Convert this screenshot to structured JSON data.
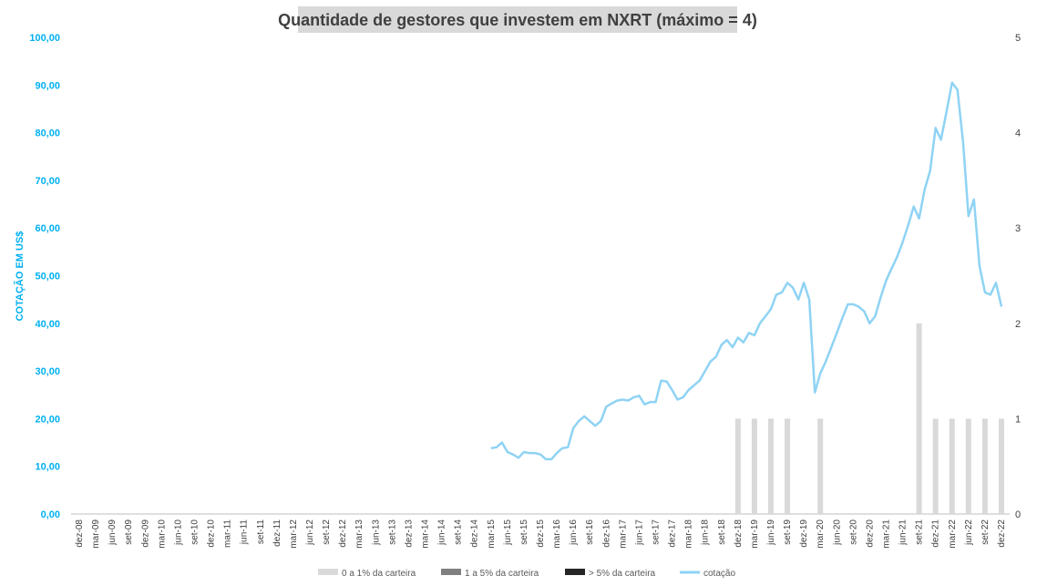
{
  "chart_data": {
    "type": "bar+line",
    "title": "Quantidade de gestores que investem em NXRT (máximo = 4)",
    "ylabel_left": "COTAÇÃO EM US$",
    "ylim_left": [
      0,
      100
    ],
    "yticks_left": [
      "0,00",
      "10,00",
      "20,00",
      "30,00",
      "40,00",
      "50,00",
      "60,00",
      "70,00",
      "80,00",
      "90,00",
      "100,00"
    ],
    "ylim_right": [
      0,
      5
    ],
    "yticks_right": [
      "0",
      "1",
      "2",
      "3",
      "4",
      "5"
    ],
    "grid": false,
    "legend_position": "bottom",
    "x_labels": [
      "dez-08",
      "mar-09",
      "jun-09",
      "set-09",
      "dez-09",
      "mar-10",
      "jun-10",
      "set-10",
      "dez-10",
      "mar-11",
      "jun-11",
      "set-11",
      "dez-11",
      "mar-12",
      "jun-12",
      "set-12",
      "dez-12",
      "mar-13",
      "jun-13",
      "set-13",
      "dez-13",
      "mar-14",
      "jun-14",
      "set-14",
      "dez-14",
      "mar-15",
      "jun-15",
      "set-15",
      "dez-15",
      "mar-16",
      "jun-16",
      "set-16",
      "dez-16",
      "mar-17",
      "jun-17",
      "set-17",
      "dez-17",
      "mar-18",
      "jun-18",
      "set-18",
      "dez-18",
      "mar-19",
      "jun-19",
      "set-19",
      "dez-19",
      "mar-20",
      "jun-20",
      "set-20",
      "dez-20",
      "mar-21",
      "jun-21",
      "set-21",
      "dez-21",
      "mar-22",
      "jun-22",
      "set-22",
      "dez-22"
    ],
    "series": [
      {
        "name": "0 a 1% da carteira",
        "type": "bar",
        "color": "#d9d9d9",
        "axis": "right",
        "values": [
          0,
          0,
          0,
          0,
          0,
          0,
          0,
          0,
          0,
          0,
          0,
          0,
          0,
          0,
          0,
          0,
          0,
          0,
          0,
          0,
          0,
          0,
          0,
          0,
          0,
          0,
          0,
          0,
          0,
          0,
          0,
          0,
          0,
          0,
          0,
          0,
          0,
          0,
          0,
          0,
          1,
          1,
          1,
          1,
          0,
          1,
          0,
          0,
          0,
          0,
          0,
          2,
          1,
          1,
          1,
          1,
          1
        ]
      },
      {
        "name": "1 a 5% da carteira",
        "type": "bar",
        "color": "#808080",
        "axis": "right",
        "values": [
          0,
          0,
          0,
          0,
          0,
          0,
          0,
          0,
          0,
          0,
          0,
          0,
          0,
          0,
          0,
          0,
          0,
          0,
          0,
          0,
          0,
          0,
          0,
          0,
          0,
          0,
          0,
          0,
          0,
          0,
          0,
          0,
          0,
          0,
          0,
          0,
          0,
          0,
          0,
          0,
          0,
          0,
          0,
          0,
          0,
          0,
          0,
          0,
          0,
          0,
          0,
          0,
          0,
          0,
          0,
          0,
          0
        ]
      },
      {
        "name": "> 5% da carteira",
        "type": "bar",
        "color": "#262626",
        "axis": "right",
        "values": [
          0,
          0,
          0,
          0,
          0,
          0,
          0,
          0,
          0,
          0,
          0,
          0,
          0,
          0,
          0,
          0,
          0,
          0,
          0,
          0,
          0,
          0,
          0,
          0,
          0,
          0,
          0,
          0,
          0,
          0,
          0,
          0,
          0,
          0,
          0,
          0,
          0,
          0,
          0,
          0,
          0,
          0,
          0,
          0,
          0,
          0,
          0,
          0,
          0,
          0,
          0,
          0,
          0,
          0,
          0,
          0,
          0
        ]
      },
      {
        "name": "cotação",
        "type": "line",
        "color": "#8fd3f4",
        "axis": "left",
        "points": [
          [
            25.0,
            13.8
          ],
          [
            25.33,
            14.0
          ],
          [
            25.67,
            15.0
          ],
          [
            26.0,
            13.0
          ],
          [
            26.33,
            12.5
          ],
          [
            26.67,
            11.8
          ],
          [
            27.0,
            13.0
          ],
          [
            27.33,
            12.8
          ],
          [
            27.67,
            12.8
          ],
          [
            28.0,
            12.5
          ],
          [
            28.33,
            11.5
          ],
          [
            28.67,
            11.5
          ],
          [
            29.0,
            12.8
          ],
          [
            29.33,
            13.8
          ],
          [
            29.67,
            14.0
          ],
          [
            30.0,
            18.0
          ],
          [
            30.33,
            19.5
          ],
          [
            30.67,
            20.5
          ],
          [
            31.0,
            19.5
          ],
          [
            31.33,
            18.5
          ],
          [
            31.67,
            19.5
          ],
          [
            32.0,
            22.5
          ],
          [
            32.33,
            23.2
          ],
          [
            32.67,
            23.8
          ],
          [
            33.0,
            24.0
          ],
          [
            33.33,
            23.8
          ],
          [
            33.67,
            24.5
          ],
          [
            34.0,
            24.8
          ],
          [
            34.33,
            23.0
          ],
          [
            34.67,
            23.5
          ],
          [
            35.0,
            23.5
          ],
          [
            35.33,
            28.0
          ],
          [
            35.67,
            27.8
          ],
          [
            36.0,
            26.0
          ],
          [
            36.33,
            24.0
          ],
          [
            36.67,
            24.5
          ],
          [
            37.0,
            26.0
          ],
          [
            37.33,
            27.0
          ],
          [
            37.67,
            28.0
          ],
          [
            38.0,
            30.0
          ],
          [
            38.33,
            32.0
          ],
          [
            38.67,
            33.0
          ],
          [
            39.0,
            35.5
          ],
          [
            39.33,
            36.5
          ],
          [
            39.67,
            35.0
          ],
          [
            40.0,
            37.0
          ],
          [
            40.33,
            36.0
          ],
          [
            40.67,
            38.0
          ],
          [
            41.0,
            37.5
          ],
          [
            41.33,
            40.0
          ],
          [
            41.67,
            41.5
          ],
          [
            42.0,
            43.0
          ],
          [
            42.33,
            46.0
          ],
          [
            42.67,
            46.5
          ],
          [
            43.0,
            48.5
          ],
          [
            43.33,
            47.5
          ],
          [
            43.67,
            45.0
          ],
          [
            44.0,
            48.5
          ],
          [
            44.33,
            45.0
          ],
          [
            44.67,
            25.5
          ],
          [
            45.0,
            29.5
          ],
          [
            45.33,
            32.0
          ],
          [
            45.67,
            35.0
          ],
          [
            46.0,
            38.0
          ],
          [
            46.33,
            41.0
          ],
          [
            46.67,
            44.0
          ],
          [
            47.0,
            44.0
          ],
          [
            47.33,
            43.5
          ],
          [
            47.67,
            42.5
          ],
          [
            48.0,
            40.0
          ],
          [
            48.33,
            41.5
          ],
          [
            48.67,
            45.5
          ],
          [
            49.0,
            49.0
          ],
          [
            49.33,
            51.5
          ],
          [
            49.67,
            54.0
          ],
          [
            50.0,
            57.0
          ],
          [
            50.33,
            60.5
          ],
          [
            50.67,
            64.5
          ],
          [
            51.0,
            62.0
          ],
          [
            51.33,
            68.0
          ],
          [
            51.67,
            72.0
          ],
          [
            52.0,
            81.0
          ],
          [
            52.33,
            78.5
          ],
          [
            52.67,
            84.5
          ],
          [
            53.0,
            90.5
          ],
          [
            53.33,
            89.0
          ],
          [
            53.67,
            78.0
          ],
          [
            54.0,
            62.5
          ],
          [
            54.33,
            66.0
          ],
          [
            54.67,
            52.0
          ],
          [
            55.0,
            46.5
          ],
          [
            55.33,
            46.0
          ],
          [
            55.67,
            48.5
          ],
          [
            56.0,
            43.5
          ]
        ]
      }
    ]
  },
  "legend": [
    {
      "label": "0 a 1% da carteira",
      "color": "#d9d9d9",
      "shape": "rect"
    },
    {
      "label": "1 a 5% da carteira",
      "color": "#808080",
      "shape": "rect"
    },
    {
      "label": "> 5% da carteira",
      "color": "#262626",
      "shape": "rect"
    },
    {
      "label": "cotação",
      "color": "#8fd3f4",
      "shape": "line"
    }
  ]
}
